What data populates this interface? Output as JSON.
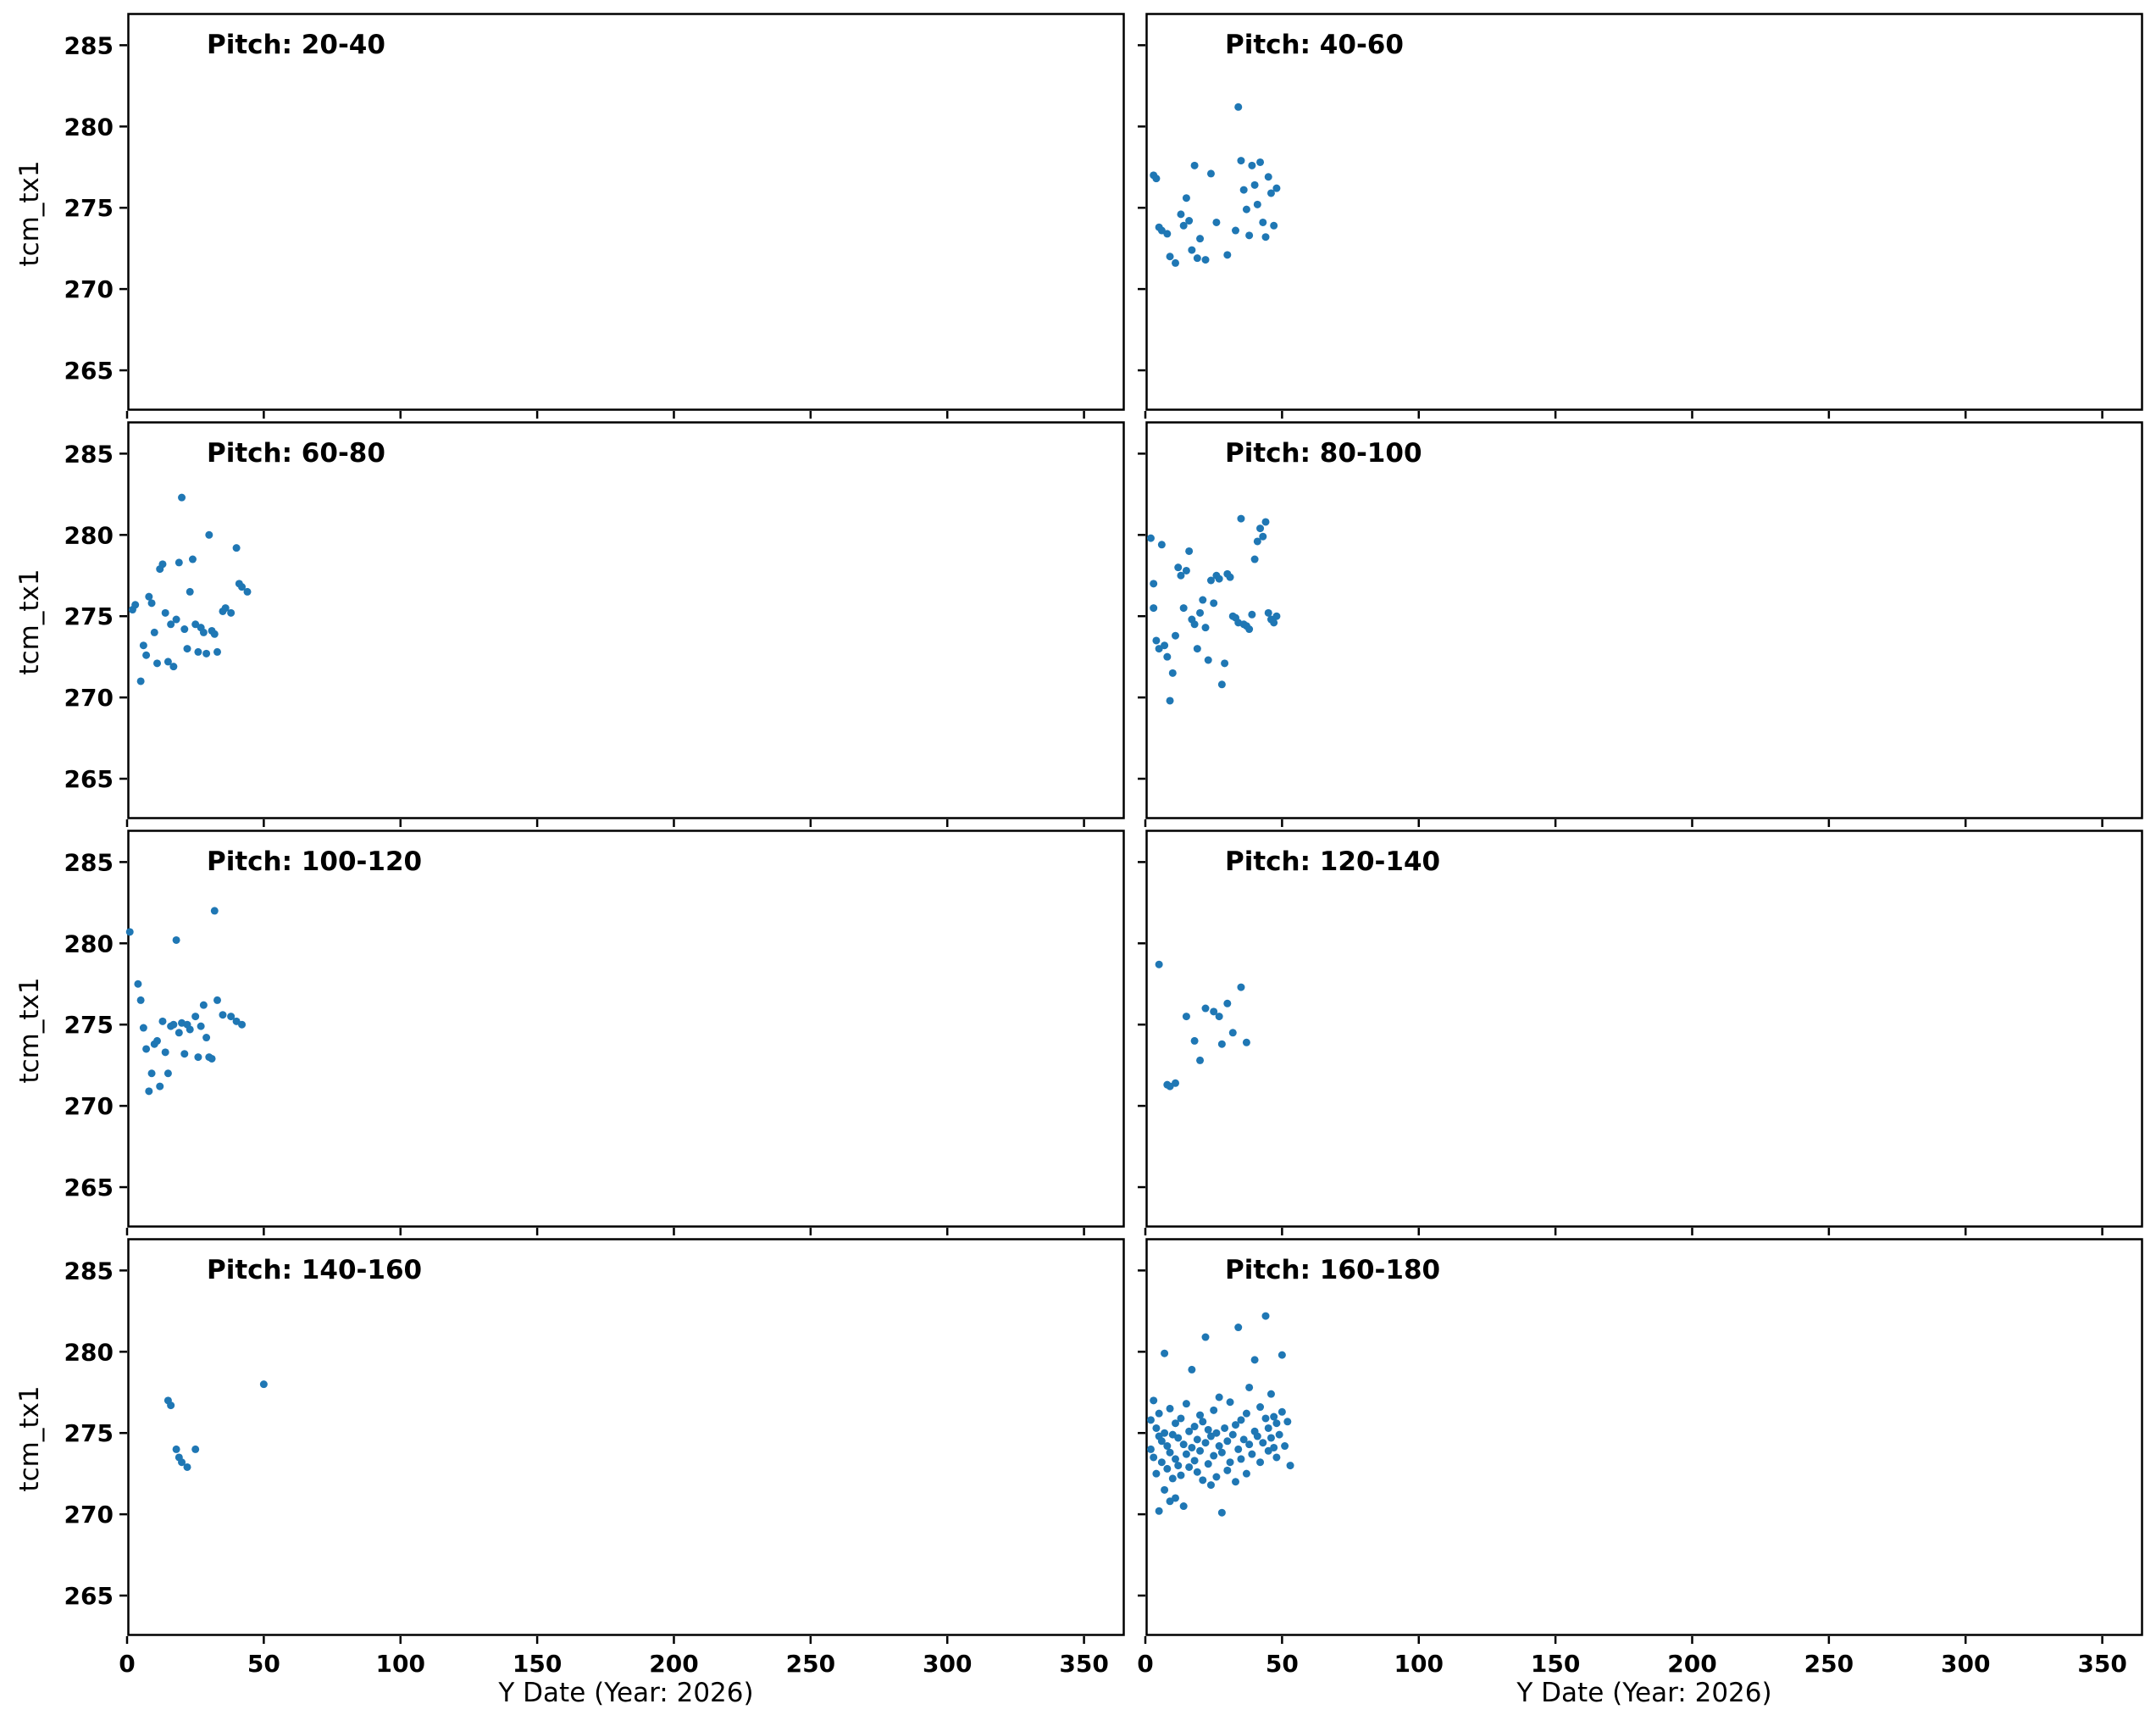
{
  "figure": {
    "xlabel": "Y Date (Year: 2026)",
    "ylabel": "tcm_tx1",
    "point_color": "#1f77b4",
    "axis_color": "#000000",
    "background": "#ffffff"
  },
  "chart_data": [
    {
      "type": "scatter",
      "title": "Pitch: 20-40",
      "xlabel": "Y Date (Year: 2026)",
      "ylabel": "tcm_tx1",
      "xlim": [
        0,
        365
      ],
      "ylim": [
        262.5,
        287
      ],
      "xticks": [
        0,
        50,
        100,
        150,
        200,
        250,
        300,
        350
      ],
      "yticks": [
        265,
        270,
        275,
        280,
        285
      ],
      "points": []
    },
    {
      "type": "scatter",
      "title": "Pitch: 40-60",
      "xlabel": "Y Date (Year: 2026)",
      "ylabel": "tcm_tx1",
      "xlim": [
        0,
        365
      ],
      "ylim": [
        262.5,
        287
      ],
      "xticks": [
        0,
        50,
        100,
        150,
        200,
        250,
        300,
        350
      ],
      "yticks": [
        265,
        270,
        275,
        280,
        285
      ],
      "points": [
        [
          3,
          277.0
        ],
        [
          4,
          276.8
        ],
        [
          5,
          273.8
        ],
        [
          6,
          273.6
        ],
        [
          8,
          273.4
        ],
        [
          9,
          272.0
        ],
        [
          11,
          271.6
        ],
        [
          13,
          274.6
        ],
        [
          14,
          273.9
        ],
        [
          15,
          275.6
        ],
        [
          16,
          274.2
        ],
        [
          17,
          272.4
        ],
        [
          18,
          277.6
        ],
        [
          19,
          271.9
        ],
        [
          20,
          273.1
        ],
        [
          22,
          271.8
        ],
        [
          24,
          277.1
        ],
        [
          26,
          274.1
        ],
        [
          30,
          272.1
        ],
        [
          33,
          273.6
        ],
        [
          34,
          281.2
        ],
        [
          35,
          277.9
        ],
        [
          36,
          276.1
        ],
        [
          37,
          274.9
        ],
        [
          38,
          273.3
        ],
        [
          39,
          277.6
        ],
        [
          40,
          276.4
        ],
        [
          41,
          275.2
        ],
        [
          42,
          277.8
        ],
        [
          43,
          274.1
        ],
        [
          44,
          273.2
        ],
        [
          45,
          276.9
        ],
        [
          46,
          275.9
        ],
        [
          47,
          273.9
        ],
        [
          48,
          276.2
        ]
      ]
    },
    {
      "type": "scatter",
      "title": "Pitch: 60-80",
      "xlabel": "Y Date (Year: 2026)",
      "ylabel": "tcm_tx1",
      "xlim": [
        0,
        365
      ],
      "ylim": [
        262.5,
        287
      ],
      "xticks": [
        0,
        50,
        100,
        150,
        200,
        250,
        300,
        350
      ],
      "yticks": [
        265,
        270,
        275,
        280,
        285
      ],
      "points": [
        [
          2,
          275.4
        ],
        [
          3,
          275.7
        ],
        [
          5,
          271.0
        ],
        [
          6,
          273.2
        ],
        [
          7,
          272.6
        ],
        [
          8,
          276.2
        ],
        [
          9,
          275.8
        ],
        [
          10,
          274.0
        ],
        [
          11,
          272.1
        ],
        [
          12,
          277.9
        ],
        [
          13,
          278.2
        ],
        [
          14,
          275.2
        ],
        [
          15,
          272.2
        ],
        [
          16,
          274.5
        ],
        [
          17,
          271.9
        ],
        [
          18,
          274.8
        ],
        [
          19,
          278.3
        ],
        [
          20,
          282.3
        ],
        [
          21,
          274.2
        ],
        [
          22,
          273.0
        ],
        [
          23,
          276.5
        ],
        [
          24,
          278.5
        ],
        [
          25,
          274.5
        ],
        [
          26,
          272.8
        ],
        [
          27,
          274.3
        ],
        [
          28,
          274.0
        ],
        [
          29,
          272.7
        ],
        [
          30,
          280.0
        ],
        [
          31,
          274.1
        ],
        [
          32,
          273.9
        ],
        [
          33,
          272.8
        ],
        [
          35,
          275.3
        ],
        [
          36,
          275.5
        ],
        [
          38,
          275.2
        ],
        [
          40,
          279.2
        ],
        [
          41,
          277.0
        ],
        [
          42,
          276.8
        ],
        [
          44,
          276.5
        ]
      ]
    },
    {
      "type": "scatter",
      "title": "Pitch: 80-100",
      "xlabel": "Y Date (Year: 2026)",
      "ylabel": "tcm_tx1",
      "xlim": [
        0,
        365
      ],
      "ylim": [
        262.5,
        287
      ],
      "xticks": [
        0,
        50,
        100,
        150,
        200,
        250,
        300,
        350
      ],
      "yticks": [
        265,
        270,
        275,
        280,
        285
      ],
      "points": [
        [
          2,
          279.8
        ],
        [
          3,
          277.0
        ],
        [
          3,
          275.5
        ],
        [
          4,
          273.5
        ],
        [
          5,
          273.0
        ],
        [
          6,
          279.4
        ],
        [
          7,
          273.2
        ],
        [
          8,
          272.5
        ],
        [
          9,
          269.8
        ],
        [
          10,
          271.5
        ],
        [
          11,
          273.8
        ],
        [
          12,
          278.0
        ],
        [
          13,
          277.5
        ],
        [
          14,
          275.5
        ],
        [
          15,
          277.8
        ],
        [
          16,
          279.0
        ],
        [
          17,
          274.8
        ],
        [
          18,
          274.5
        ],
        [
          19,
          273.0
        ],
        [
          20,
          275.2
        ],
        [
          21,
          276.0
        ],
        [
          22,
          274.3
        ],
        [
          23,
          272.3
        ],
        [
          24,
          277.2
        ],
        [
          25,
          275.8
        ],
        [
          26,
          277.5
        ],
        [
          27,
          277.3
        ],
        [
          28,
          270.8
        ],
        [
          29,
          272.1
        ],
        [
          30,
          277.6
        ],
        [
          31,
          277.4
        ],
        [
          32,
          275.0
        ],
        [
          33,
          274.9
        ],
        [
          34,
          274.6
        ],
        [
          35,
          281.0
        ],
        [
          36,
          274.5
        ],
        [
          37,
          274.4
        ],
        [
          38,
          274.2
        ],
        [
          39,
          275.1
        ],
        [
          40,
          278.5
        ],
        [
          41,
          279.6
        ],
        [
          42,
          280.4
        ],
        [
          43,
          279.9
        ],
        [
          44,
          280.8
        ],
        [
          45,
          275.2
        ],
        [
          46,
          274.8
        ],
        [
          47,
          274.6
        ],
        [
          48,
          275.0
        ]
      ]
    },
    {
      "type": "scatter",
      "title": "Pitch: 100-120",
      "xlabel": "Y Date (Year: 2026)",
      "ylabel": "tcm_tx1",
      "xlim": [
        0,
        365
      ],
      "ylim": [
        262.5,
        287
      ],
      "xticks": [
        0,
        50,
        100,
        150,
        200,
        250,
        300,
        350
      ],
      "yticks": [
        265,
        270,
        275,
        280,
        285
      ],
      "points": [
        [
          1,
          280.7
        ],
        [
          4,
          277.5
        ],
        [
          5,
          276.5
        ],
        [
          6,
          274.8
        ],
        [
          7,
          273.5
        ],
        [
          8,
          270.9
        ],
        [
          9,
          272.0
        ],
        [
          10,
          273.8
        ],
        [
          11,
          274.0
        ],
        [
          12,
          271.2
        ],
        [
          13,
          275.2
        ],
        [
          14,
          273.3
        ],
        [
          15,
          272.0
        ],
        [
          16,
          274.9
        ],
        [
          17,
          275.0
        ],
        [
          18,
          280.2
        ],
        [
          19,
          274.5
        ],
        [
          20,
          275.1
        ],
        [
          21,
          273.2
        ],
        [
          22,
          275.0
        ],
        [
          23,
          274.7
        ],
        [
          25,
          275.5
        ],
        [
          26,
          273.0
        ],
        [
          27,
          274.9
        ],
        [
          28,
          276.2
        ],
        [
          29,
          274.2
        ],
        [
          30,
          273.0
        ],
        [
          31,
          272.9
        ],
        [
          32,
          282.0
        ],
        [
          33,
          276.5
        ],
        [
          35,
          275.6
        ],
        [
          38,
          275.5
        ],
        [
          40,
          275.2
        ],
        [
          42,
          275.0
        ]
      ]
    },
    {
      "type": "scatter",
      "title": "Pitch: 120-140",
      "xlabel": "Y Date (Year: 2026)",
      "ylabel": "tcm_tx1",
      "xlim": [
        0,
        365
      ],
      "ylim": [
        262.5,
        287
      ],
      "xticks": [
        0,
        50,
        100,
        150,
        200,
        250,
        300,
        350
      ],
      "yticks": [
        265,
        270,
        275,
        280,
        285
      ],
      "points": [
        [
          5,
          278.7
        ],
        [
          8,
          271.3
        ],
        [
          9,
          271.2
        ],
        [
          11,
          271.4
        ],
        [
          15,
          275.5
        ],
        [
          18,
          274.0
        ],
        [
          20,
          272.8
        ],
        [
          22,
          276.0
        ],
        [
          25,
          275.8
        ],
        [
          27,
          275.5
        ],
        [
          28,
          273.8
        ],
        [
          30,
          276.3
        ],
        [
          32,
          274.5
        ],
        [
          35,
          277.3
        ],
        [
          37,
          273.9
        ]
      ]
    },
    {
      "type": "scatter",
      "title": "Pitch: 140-160",
      "xlabel": "Y Date (Year: 2026)",
      "ylabel": "tcm_tx1",
      "xlim": [
        0,
        365
      ],
      "ylim": [
        262.5,
        287
      ],
      "xticks": [
        0,
        50,
        100,
        150,
        200,
        250,
        300,
        350
      ],
      "yticks": [
        265,
        270,
        275,
        280,
        285
      ],
      "points": [
        [
          15,
          277.0
        ],
        [
          16,
          276.7
        ],
        [
          18,
          274.0
        ],
        [
          19,
          273.5
        ],
        [
          20,
          273.2
        ],
        [
          22,
          272.9
        ],
        [
          25,
          274.0
        ],
        [
          50,
          278.0
        ]
      ]
    },
    {
      "type": "scatter",
      "title": "Pitch: 160-180",
      "xlabel": "Y Date (Year: 2026)",
      "ylabel": "tcm_tx1",
      "xlim": [
        0,
        365
      ],
      "ylim": [
        262.5,
        287
      ],
      "xticks": [
        0,
        50,
        100,
        150,
        200,
        250,
        300,
        350
      ],
      "yticks": [
        265,
        270,
        275,
        280,
        285
      ],
      "points": [
        [
          2,
          274.0
        ],
        [
          2,
          275.8
        ],
        [
          3,
          273.5
        ],
        [
          3,
          277.0
        ],
        [
          4,
          272.5
        ],
        [
          4,
          275.3
        ],
        [
          5,
          270.2
        ],
        [
          5,
          274.8
        ],
        [
          5,
          276.2
        ],
        [
          6,
          273.2
        ],
        [
          6,
          274.5
        ],
        [
          7,
          271.5
        ],
        [
          7,
          275.0
        ],
        [
          7,
          279.9
        ],
        [
          8,
          272.8
        ],
        [
          8,
          274.2
        ],
        [
          9,
          270.8
        ],
        [
          9,
          273.8
        ],
        [
          9,
          276.5
        ],
        [
          10,
          272.2
        ],
        [
          10,
          274.9
        ],
        [
          11,
          271.0
        ],
        [
          11,
          273.4
        ],
        [
          11,
          275.6
        ],
        [
          12,
          273.0
        ],
        [
          12,
          274.7
        ],
        [
          13,
          272.4
        ],
        [
          13,
          275.9
        ],
        [
          14,
          270.5
        ],
        [
          14,
          274.3
        ],
        [
          15,
          273.7
        ],
        [
          15,
          276.8
        ],
        [
          16,
          272.9
        ],
        [
          16,
          275.1
        ],
        [
          17,
          274.1
        ],
        [
          17,
          278.9
        ],
        [
          18,
          273.3
        ],
        [
          18,
          275.4
        ],
        [
          19,
          272.6
        ],
        [
          19,
          274.6
        ],
        [
          20,
          273.9
        ],
        [
          20,
          276.1
        ],
        [
          21,
          272.1
        ],
        [
          21,
          275.7
        ],
        [
          22,
          274.4
        ],
        [
          22,
          280.9
        ],
        [
          23,
          273.1
        ],
        [
          23,
          275.2
        ],
        [
          24,
          271.8
        ],
        [
          24,
          274.8
        ],
        [
          25,
          273.6
        ],
        [
          25,
          276.4
        ],
        [
          26,
          272.3
        ],
        [
          26,
          275.0
        ],
        [
          27,
          274.2
        ],
        [
          27,
          277.2
        ],
        [
          28,
          270.1
        ],
        [
          28,
          273.8
        ],
        [
          29,
          275.3
        ],
        [
          30,
          272.7
        ],
        [
          30,
          274.5
        ],
        [
          31,
          273.2
        ],
        [
          31,
          276.9
        ],
        [
          32,
          274.9
        ],
        [
          33,
          272.0
        ],
        [
          33,
          275.5
        ],
        [
          34,
          274.0
        ],
        [
          34,
          281.5
        ],
        [
          35,
          273.4
        ],
        [
          35,
          275.8
        ],
        [
          36,
          274.6
        ],
        [
          37,
          272.5
        ],
        [
          37,
          276.2
        ],
        [
          38,
          274.3
        ],
        [
          38,
          277.8
        ],
        [
          39,
          273.7
        ],
        [
          40,
          275.1
        ],
        [
          40,
          279.5
        ],
        [
          41,
          274.8
        ],
        [
          42,
          273.2
        ],
        [
          42,
          276.6
        ],
        [
          43,
          274.4
        ],
        [
          44,
          275.9
        ],
        [
          44,
          282.2
        ],
        [
          45,
          273.9
        ],
        [
          45,
          275.3
        ],
        [
          46,
          274.7
        ],
        [
          46,
          277.4
        ],
        [
          47,
          274.1
        ],
        [
          47,
          276.0
        ],
        [
          48,
          273.5
        ],
        [
          48,
          275.6
        ],
        [
          49,
          274.9
        ],
        [
          50,
          276.3
        ],
        [
          50,
          279.8
        ],
        [
          51,
          274.2
        ],
        [
          52,
          275.7
        ],
        [
          53,
          273.0
        ]
      ]
    }
  ]
}
